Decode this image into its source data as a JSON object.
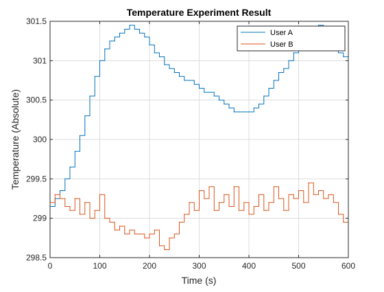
{
  "chart_data": {
    "type": "line",
    "title": "Temperature Experiment Result",
    "xlabel": "Time (s)",
    "ylabel": "Temperature (Absolute)",
    "xlim": [
      0,
      600
    ],
    "ylim": [
      298.5,
      301.5
    ],
    "xticks": [
      0,
      100,
      200,
      300,
      400,
      500,
      600
    ],
    "yticks": [
      298.5,
      299,
      299.5,
      300,
      300.5,
      301,
      301.5
    ],
    "yticklabels": [
      "298.5",
      "299",
      "299.5",
      "300",
      "300.5",
      "301",
      "301.5"
    ],
    "grid": true,
    "legend_position": "top-right",
    "series": [
      {
        "name": "User A",
        "color": "#0072BD",
        "x": [
          0,
          10,
          20,
          30,
          40,
          50,
          60,
          70,
          80,
          90,
          100,
          110,
          120,
          130,
          140,
          150,
          160,
          170,
          180,
          190,
          200,
          210,
          220,
          230,
          240,
          250,
          260,
          270,
          280,
          290,
          300,
          310,
          320,
          330,
          340,
          350,
          360,
          370,
          380,
          390,
          400,
          410,
          420,
          430,
          440,
          450,
          460,
          470,
          480,
          490,
          500,
          510,
          520,
          530,
          540,
          550,
          560,
          570,
          580,
          590,
          600
        ],
        "y": [
          299.15,
          299.25,
          299.35,
          299.5,
          299.65,
          299.85,
          300.05,
          300.3,
          300.55,
          300.8,
          301.0,
          301.15,
          301.25,
          301.3,
          301.35,
          301.4,
          301.45,
          301.4,
          301.35,
          301.3,
          301.2,
          301.1,
          301.05,
          300.95,
          300.9,
          300.85,
          300.8,
          300.75,
          300.75,
          300.7,
          300.65,
          300.6,
          300.6,
          300.55,
          300.5,
          300.45,
          300.4,
          300.35,
          300.35,
          300.35,
          300.35,
          300.4,
          300.45,
          300.55,
          300.65,
          300.75,
          300.85,
          300.9,
          301.0,
          301.1,
          301.2,
          301.3,
          301.35,
          301.4,
          301.45,
          301.4,
          301.3,
          301.2,
          301.1,
          301.05,
          301.05
        ]
      },
      {
        "name": "User B",
        "color": "#D95319",
        "x": [
          0,
          10,
          20,
          30,
          40,
          50,
          60,
          70,
          80,
          90,
          100,
          110,
          120,
          130,
          140,
          150,
          160,
          170,
          180,
          190,
          200,
          210,
          220,
          230,
          240,
          250,
          260,
          270,
          280,
          290,
          300,
          310,
          320,
          330,
          340,
          350,
          360,
          370,
          380,
          390,
          400,
          410,
          420,
          430,
          440,
          450,
          460,
          470,
          480,
          490,
          500,
          510,
          520,
          530,
          540,
          550,
          560,
          570,
          580,
          590,
          600
        ],
        "y": [
          299.2,
          299.3,
          299.25,
          299.15,
          299.1,
          299.25,
          299.05,
          299.2,
          299.0,
          299.1,
          299.3,
          299.0,
          298.95,
          298.85,
          298.9,
          298.8,
          298.85,
          298.8,
          298.8,
          298.75,
          298.8,
          298.85,
          298.65,
          298.6,
          298.75,
          298.8,
          298.95,
          299.05,
          299.2,
          299.1,
          299.35,
          299.25,
          299.4,
          299.1,
          299.2,
          299.3,
          299.15,
          299.4,
          299.1,
          299.2,
          299.05,
          299.15,
          299.3,
          299.1,
          299.2,
          299.4,
          299.25,
          299.1,
          299.3,
          299.25,
          299.35,
          299.2,
          299.45,
          299.3,
          299.35,
          299.25,
          299.3,
          299.2,
          299.05,
          298.95,
          298.9
        ]
      }
    ]
  }
}
